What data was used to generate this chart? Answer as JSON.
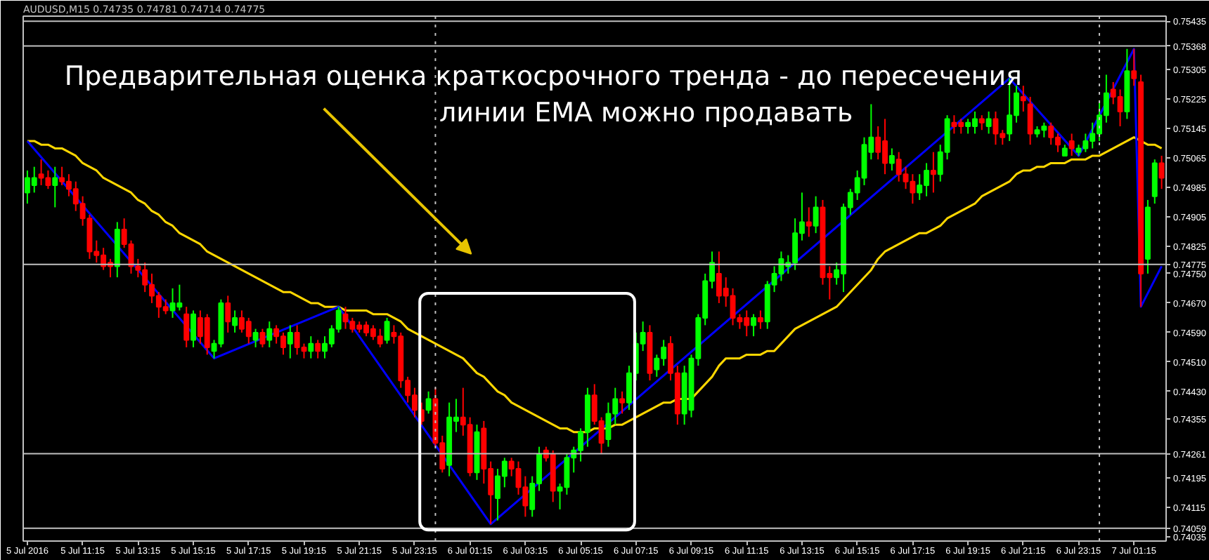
{
  "chart_data": {
    "type": "candlestick",
    "title": "Предварительная оценка краткосрочного тренда - до пересечения\nлинии EMA можно продавать",
    "subtitle": "AUDUSD,M15  0.74735 0.74781 0.74714 0.74775",
    "ylim": [
      0.74024,
      0.75449
    ],
    "yticks": [
      0.74035,
      0.74115,
      0.74195,
      0.74355,
      {
        "value": 0.7443,
        "label": "0.74430"
      },
      {
        "value": 0.7451,
        "label": "0.74510"
      },
      {
        "value": 0.7459,
        "label": "0.74590"
      },
      {
        "value": 0.7467,
        "label": "0.74670"
      },
      {
        "value": 0.7475,
        "label": "0.74750"
      },
      0.74825,
      0.74905,
      0.74985,
      0.75065,
      0.75145,
      0.75225,
      0.75305
    ],
    "categories": [
      "5 Jul 2016",
      null,
      null,
      null,
      null,
      null,
      null,
      null,
      "5 Jul 11:15",
      null,
      null,
      null,
      null,
      null,
      null,
      null,
      "5 Jul 13:15",
      null,
      null,
      null,
      null,
      null,
      null,
      null,
      "5 Jul 15:15",
      null,
      null,
      null,
      null,
      null,
      null,
      null,
      "5 Jul 17:15",
      null,
      null,
      null,
      null,
      null,
      null,
      null,
      "5 Jul 19:15",
      null,
      null,
      null,
      null,
      null,
      null,
      null,
      "5 Jul 21:15",
      null,
      null,
      null,
      null,
      null,
      null,
      null,
      "5 Jul 23:15",
      null,
      null,
      null,
      null,
      null,
      null,
      null,
      "6 Jul 01:15",
      null,
      null,
      null,
      null,
      null,
      null,
      null,
      "6 Jul 03:15",
      null,
      null,
      null,
      null,
      null,
      null,
      null,
      "6 Jul 05:15",
      null,
      null,
      null,
      null,
      null,
      null,
      null,
      "6 Jul 07:15",
      null,
      null,
      null,
      null,
      null,
      null,
      null,
      "6 Jul 09:15",
      null,
      null,
      null,
      null,
      null,
      null,
      null,
      "6 Jul 11:15",
      null,
      null,
      null,
      null,
      null,
      null,
      null,
      "6 Jul 13:15",
      null,
      null,
      null,
      null,
      null,
      null,
      null,
      "6 Jul 15:15",
      null,
      null,
      null,
      null,
      null,
      null,
      null,
      "6 Jul 17:15",
      null,
      null,
      null,
      null,
      null,
      null,
      null,
      "6 Jul 19:15",
      null,
      null,
      null,
      null,
      null,
      null,
      null,
      "6 Jul 21:15",
      null,
      null,
      null,
      null,
      null,
      null,
      null,
      "6 Jul 23:15",
      null,
      null,
      null,
      null,
      null,
      null,
      null,
      "7 Jul 01:15",
      null,
      null,
      null,
      null
    ],
    "ref_lines": [
      {
        "axis": "y",
        "value": 0.75435,
        "label": "0.75435",
        "color": "#c0c0c0"
      },
      {
        "axis": "y",
        "value": 0.75368,
        "label": "0.75368",
        "color": "#c0c0c0"
      },
      {
        "axis": "y",
        "value": 0.74775,
        "label": "0.74775",
        "color": "#c0c0c0"
      },
      {
        "axis": "y",
        "value": 0.74261,
        "label": "0.74261",
        "color": "#c0c0c0"
      },
      {
        "axis": "y",
        "value": 0.74059,
        "label": "0.74059",
        "color": "#c0c0c0"
      }
    ],
    "ohlc": [
      [
        0.7497,
        0.7503,
        0.7494,
        0.7501
      ],
      [
        0.7499,
        0.7504,
        0.7497,
        0.7501
      ],
      [
        0.7502,
        0.7506,
        0.7499,
        0.7501
      ],
      [
        0.7501,
        0.7503,
        0.7498,
        0.7499
      ],
      [
        0.7499,
        0.7504,
        0.7493,
        0.7501
      ],
      [
        0.7501,
        0.7504,
        0.7499,
        0.75
      ],
      [
        0.75,
        0.7502,
        0.7496,
        0.7498
      ],
      [
        0.7498,
        0.75,
        0.7492,
        0.7494
      ],
      [
        0.7494,
        0.7496,
        0.7488,
        0.749
      ],
      [
        0.749,
        0.7491,
        0.7479,
        0.7481
      ],
      [
        0.7481,
        0.7484,
        0.7478,
        0.748
      ],
      [
        0.748,
        0.7482,
        0.7476,
        0.7477
      ],
      [
        0.7478,
        0.7479,
        0.7474,
        0.7477
      ],
      [
        0.7477,
        0.7489,
        0.7474,
        0.7487
      ],
      [
        0.7487,
        0.749,
        0.7482,
        0.7483
      ],
      [
        0.7483,
        0.7484,
        0.7475,
        0.7477
      ],
      [
        0.7477,
        0.7479,
        0.7474,
        0.7476
      ],
      [
        0.7476,
        0.7478,
        0.747,
        0.7472
      ],
      [
        0.7472,
        0.7475,
        0.7467,
        0.7469
      ],
      [
        0.7469,
        0.747,
        0.7463,
        0.7466
      ],
      [
        0.7466,
        0.7468,
        0.7464,
        0.7465
      ],
      [
        0.7465,
        0.7471,
        0.7463,
        0.7467
      ],
      [
        0.7466,
        0.7472,
        0.7465,
        0.7467
      ],
      [
        0.7464,
        0.7466,
        0.7455,
        0.7457
      ],
      [
        0.7457,
        0.7465,
        0.7455,
        0.7464
      ],
      [
        0.7463,
        0.7465,
        0.7456,
        0.7458
      ],
      [
        0.7463,
        0.7464,
        0.7453,
        0.7455
      ],
      [
        0.7454,
        0.7457,
        0.7452,
        0.7456
      ],
      [
        0.7456,
        0.7468,
        0.7455,
        0.7467
      ],
      [
        0.7467,
        0.7469,
        0.7459,
        0.7462
      ],
      [
        0.7461,
        0.7465,
        0.7459,
        0.7463
      ],
      [
        0.7463,
        0.7465,
        0.7459,
        0.746
      ],
      [
        0.7462,
        0.7463,
        0.7456,
        0.7458
      ],
      [
        0.7457,
        0.746,
        0.7455,
        0.7459
      ],
      [
        0.7459,
        0.746,
        0.7455,
        0.7456
      ],
      [
        0.7457,
        0.7462,
        0.7455,
        0.746
      ],
      [
        0.746,
        0.7461,
        0.7456,
        0.7458
      ],
      [
        0.7458,
        0.7459,
        0.7453,
        0.7455
      ],
      [
        0.7456,
        0.7461,
        0.7452,
        0.7459
      ],
      [
        0.7459,
        0.7461,
        0.7453,
        0.7455
      ],
      [
        0.7455,
        0.7456,
        0.7452,
        0.7454
      ],
      [
        0.7454,
        0.7458,
        0.7452,
        0.7456
      ],
      [
        0.7456,
        0.7457,
        0.7452,
        0.7454
      ],
      [
        0.7454,
        0.7458,
        0.7452,
        0.7456
      ],
      [
        0.7456,
        0.7461,
        0.7455,
        0.746
      ],
      [
        0.746,
        0.7466,
        0.7459,
        0.7465
      ],
      [
        0.7464,
        0.7466,
        0.746,
        0.7462
      ],
      [
        0.7462,
        0.7463,
        0.7459,
        0.746
      ],
      [
        0.7461,
        0.7462,
        0.7459,
        0.746
      ],
      [
        0.7461,
        0.7462,
        0.7458,
        0.7459
      ],
      [
        0.746,
        0.7461,
        0.7457,
        0.7458
      ],
      [
        0.7458,
        0.746,
        0.7455,
        0.7456
      ],
      [
        0.7457,
        0.7463,
        0.7456,
        0.7462
      ],
      [
        0.7459,
        0.7461,
        0.7456,
        0.7458
      ],
      [
        0.7458,
        0.7459,
        0.7444,
        0.7446
      ],
      [
        0.7446,
        0.7447,
        0.744,
        0.7442
      ],
      [
        0.7442,
        0.7444,
        0.7436,
        0.7438
      ],
      [
        0.7438,
        0.744,
        0.7434,
        0.7435
      ],
      [
        0.7438,
        0.7443,
        0.7437,
        0.7441
      ],
      [
        0.7441,
        0.7444,
        0.7428,
        0.7429
      ],
      [
        0.7429,
        0.7431,
        0.7421,
        0.7422
      ],
      [
        0.7423,
        0.744,
        0.742,
        0.7436
      ],
      [
        0.7435,
        0.7441,
        0.7432,
        0.7436
      ],
      [
        0.7436,
        0.7444,
        0.7431,
        0.7434
      ],
      [
        0.7434,
        0.7436,
        0.742,
        0.7421
      ],
      [
        0.7421,
        0.7434,
        0.7419,
        0.7432
      ],
      [
        0.7433,
        0.7435,
        0.7418,
        0.7422
      ],
      [
        0.7422,
        0.7424,
        0.7407,
        0.7415
      ],
      [
        0.7414,
        0.7422,
        0.7408,
        0.742
      ],
      [
        0.742,
        0.7425,
        0.7417,
        0.7424
      ],
      [
        0.7424,
        0.7425,
        0.742,
        0.7422
      ],
      [
        0.7422,
        0.7424,
        0.7415,
        0.7417
      ],
      [
        0.7417,
        0.742,
        0.7409,
        0.7412
      ],
      [
        0.7411,
        0.742,
        0.7409,
        0.7418
      ],
      [
        0.7418,
        0.7428,
        0.7416,
        0.7426
      ],
      [
        0.7427,
        0.7428,
        0.7424,
        0.7425
      ],
      [
        0.7426,
        0.7427,
        0.7413,
        0.7416
      ],
      [
        0.7416,
        0.7418,
        0.7411,
        0.7417
      ],
      [
        0.7417,
        0.7426,
        0.7415,
        0.7425
      ],
      [
        0.7425,
        0.7428,
        0.7421,
        0.7427
      ],
      [
        0.7427,
        0.7433,
        0.7424,
        0.7432
      ],
      [
        0.7432,
        0.7444,
        0.7428,
        0.7442
      ],
      [
        0.7442,
        0.7445,
        0.7434,
        0.7435
      ],
      [
        0.7435,
        0.7436,
        0.7426,
        0.7429
      ],
      [
        0.743,
        0.744,
        0.7428,
        0.7437
      ],
      [
        0.7437,
        0.7444,
        0.7434,
        0.7441
      ],
      [
        0.7441,
        0.7443,
        0.7437,
        0.744
      ],
      [
        0.744,
        0.745,
        0.7438,
        0.7448
      ],
      [
        0.7448,
        0.7459,
        0.7446,
        0.7456
      ],
      [
        0.7456,
        0.7462,
        0.7454,
        0.7459
      ],
      [
        0.7459,
        0.7461,
        0.7446,
        0.7448
      ],
      [
        0.7449,
        0.7453,
        0.7447,
        0.7452
      ],
      [
        0.7452,
        0.7457,
        0.745,
        0.7455
      ],
      [
        0.7456,
        0.7458,
        0.7446,
        0.7448
      ],
      [
        0.7448,
        0.745,
        0.7434,
        0.7437
      ],
      [
        0.7437,
        0.745,
        0.7434,
        0.7448
      ],
      [
        0.7438,
        0.7453,
        0.7436,
        0.7452
      ],
      [
        0.7452,
        0.7464,
        0.745,
        0.7463
      ],
      [
        0.7463,
        0.7475,
        0.7461,
        0.7473
      ],
      [
        0.7473,
        0.7481,
        0.7471,
        0.7478
      ],
      [
        0.7475,
        0.7481,
        0.7467,
        0.7469
      ],
      [
        0.7471,
        0.7474,
        0.7466,
        0.7469
      ],
      [
        0.7469,
        0.7471,
        0.7461,
        0.7463
      ],
      [
        0.7463,
        0.7464,
        0.746,
        0.7462
      ],
      [
        0.7463,
        0.7465,
        0.7458,
        0.7461
      ],
      [
        0.7461,
        0.7464,
        0.7458,
        0.7463
      ],
      [
        0.7463,
        0.7465,
        0.746,
        0.7462
      ],
      [
        0.7462,
        0.7473,
        0.746,
        0.7472
      ],
      [
        0.7472,
        0.7477,
        0.747,
        0.7475
      ],
      [
        0.7475,
        0.7481,
        0.7473,
        0.7479
      ],
      [
        0.7477,
        0.748,
        0.7475,
        0.7478
      ],
      [
        0.7478,
        0.749,
        0.7476,
        0.7486
      ],
      [
        0.7486,
        0.7497,
        0.7484,
        0.7489
      ],
      [
        0.7489,
        0.7493,
        0.7485,
        0.7488
      ],
      [
        0.7488,
        0.7496,
        0.7486,
        0.7493
      ],
      [
        0.7493,
        0.7495,
        0.7472,
        0.7474
      ],
      [
        0.7475,
        0.7477,
        0.7468,
        0.7474
      ],
      [
        0.7474,
        0.7478,
        0.7472,
        0.7476
      ],
      [
        0.7475,
        0.7494,
        0.747,
        0.7493
      ],
      [
        0.7493,
        0.7498,
        0.7491,
        0.7497
      ],
      [
        0.7497,
        0.7503,
        0.7495,
        0.7501
      ],
      [
        0.7501,
        0.7512,
        0.7499,
        0.751
      ],
      [
        0.7508,
        0.7521,
        0.7506,
        0.7512
      ],
      [
        0.7512,
        0.7515,
        0.7506,
        0.7508
      ],
      [
        0.7511,
        0.7517,
        0.7502,
        0.7505
      ],
      [
        0.7505,
        0.7509,
        0.7503,
        0.7507
      ],
      [
        0.7506,
        0.7508,
        0.75,
        0.7502
      ],
      [
        0.7502,
        0.7504,
        0.7498,
        0.75
      ],
      [
        0.75,
        0.7502,
        0.7494,
        0.7497
      ],
      [
        0.7497,
        0.7502,
        0.7495,
        0.7499
      ],
      [
        0.7499,
        0.7505,
        0.7496,
        0.7503
      ],
      [
        0.7503,
        0.7508,
        0.7497,
        0.7502
      ],
      [
        0.7502,
        0.751,
        0.75,
        0.7508
      ],
      [
        0.7508,
        0.7518,
        0.7506,
        0.7517
      ],
      [
        0.7516,
        0.7518,
        0.7513,
        0.7515
      ],
      [
        0.7516,
        0.7517,
        0.7513,
        0.7515
      ],
      [
        0.7515,
        0.7517,
        0.7513,
        0.7516
      ],
      [
        0.7515,
        0.7519,
        0.7513,
        0.7517
      ],
      [
        0.7517,
        0.7518,
        0.7514,
        0.7516
      ],
      [
        0.7515,
        0.7519,
        0.7513,
        0.7517
      ],
      [
        0.7517,
        0.7519,
        0.751,
        0.7513
      ],
      [
        0.7513,
        0.7514,
        0.751,
        0.7512
      ],
      [
        0.7513,
        0.7528,
        0.7511,
        0.7518
      ],
      [
        0.7518,
        0.7526,
        0.7516,
        0.7524
      ],
      [
        0.7523,
        0.7526,
        0.7519,
        0.7522
      ],
      [
        0.7521,
        0.7523,
        0.751,
        0.7513
      ],
      [
        0.7513,
        0.7515,
        0.7512,
        0.7514
      ],
      [
        0.7514,
        0.7516,
        0.7512,
        0.7515
      ],
      [
        0.7515,
        0.7516,
        0.751,
        0.7512
      ],
      [
        0.7512,
        0.7513,
        0.7508,
        0.751
      ],
      [
        0.7507,
        0.751,
        0.7507,
        0.7509
      ],
      [
        0.7511,
        0.7513,
        0.7507,
        0.7509
      ],
      [
        0.7508,
        0.751,
        0.7507,
        0.7509
      ],
      [
        0.7509,
        0.7513,
        0.7508,
        0.7511
      ],
      [
        0.7511,
        0.7516,
        0.7509,
        0.7513
      ],
      [
        0.7513,
        0.7522,
        0.7511,
        0.7518
      ],
      [
        0.7518,
        0.7529,
        0.7516,
        0.7524
      ],
      [
        0.7525,
        0.7527,
        0.7521,
        0.7523
      ],
      [
        0.7523,
        0.7525,
        0.7515,
        0.7519
      ],
      [
        0.7519,
        0.7536,
        0.7517,
        0.753
      ],
      [
        0.753,
        0.7536,
        0.7526,
        0.7528
      ],
      [
        0.7527,
        0.7529,
        0.7466,
        0.7475
      ],
      [
        0.7479,
        0.7495,
        0.7475,
        0.7493
      ],
      [
        0.7496,
        0.7506,
        0.7494,
        0.7505
      ],
      [
        0.7505,
        0.7507,
        0.7498,
        0.7501
      ]
    ],
    "colors": [
      "#00ff00",
      "#00ff00",
      "#ff0000",
      "#ff0000",
      "#00ff00",
      "#ff0000",
      "#ff0000",
      "#ff0000",
      "#ff0000",
      "#ff0000",
      "#ff0000",
      "#ff0000",
      "#ff0000",
      "#00ff00",
      "#ff0000",
      "#ff0000",
      "#ff0000",
      "#ff0000",
      "#ff0000",
      "#ff0000",
      "#ff0000",
      "#00ff00",
      "#00ff00",
      "#ff0000",
      "#00ff00",
      "#ff0000",
      "#ff0000",
      "#00ff00",
      "#00ff00",
      "#ff0000",
      "#00ff00",
      "#ff0000",
      "#ff0000",
      "#00ff00",
      "#ff0000",
      "#00ff00",
      "#ff0000",
      "#ff0000",
      "#00ff00",
      "#ff0000",
      "#ff0000",
      "#00ff00",
      "#ff0000",
      "#00ff00",
      "#00ff00",
      "#00ff00",
      "#ff0000",
      "#ff0000",
      "#ff0000",
      "#ff0000",
      "#ff0000",
      "#ff0000",
      "#00ff00",
      "#ff0000",
      "#ff0000",
      "#ff0000",
      "#ff0000",
      "#ff0000",
      "#00ff00",
      "#ff0000",
      "#ff0000",
      "#00ff00",
      "#00ff00",
      "#ff0000",
      "#ff0000",
      "#00ff00",
      "#ff0000",
      "#ff0000",
      "#00ff00",
      "#00ff00",
      "#ff0000",
      "#ff0000",
      "#ff0000",
      "#00ff00",
      "#00ff00",
      "#ff0000",
      "#ff0000",
      "#00ff00",
      "#00ff00",
      "#00ff00",
      "#00ff00",
      "#00ff00",
      "#ff0000",
      "#ff0000",
      "#00ff00",
      "#00ff00",
      "#ff0000",
      "#00ff00",
      "#00ff00",
      "#00ff00",
      "#ff0000",
      "#00ff00",
      "#00ff00",
      "#ff0000",
      "#ff0000",
      "#00ff00",
      "#00ff00",
      "#00ff00",
      "#00ff00",
      "#00ff00",
      "#ff0000",
      "#ff0000",
      "#ff0000",
      "#ff0000",
      "#ff0000",
      "#00ff00",
      "#ff0000",
      "#00ff00",
      "#00ff00",
      "#00ff00",
      "#00ff00",
      "#00ff00",
      "#00ff00",
      "#ff0000",
      "#00ff00",
      "#ff0000",
      "#ff0000",
      "#00ff00",
      "#00ff00",
      "#00ff00",
      "#00ff00",
      "#00ff00",
      "#00ff00",
      "#ff0000",
      "#ff0000",
      "#00ff00",
      "#ff0000",
      "#ff0000",
      "#ff0000",
      "#00ff00",
      "#00ff00",
      "#ff0000",
      "#00ff00",
      "#00ff00",
      "#ff0000",
      "#ff0000",
      "#00ff00",
      "#00ff00",
      "#ff0000",
      "#00ff00",
      "#ff0000",
      "#ff0000",
      "#00ff00",
      "#00ff00",
      "#ff0000",
      "#ff0000",
      "#00ff00",
      "#00ff00",
      "#ff0000",
      "#ff0000",
      "#00ff00",
      "#ff0000",
      "#00ff00",
      "#00ff00",
      "#00ff00",
      "#00ff00",
      "#00ff00",
      "#ff0000",
      "#ff0000",
      "#00ff00",
      "#ff0000",
      "#ff0000",
      "#00ff00",
      "#00ff00",
      "#ff0000"
    ],
    "series": [
      {
        "type": "line",
        "color": "#ffd700",
        "values": [
          0.7511,
          0.7511,
          0.751,
          0.751,
          0.7509,
          0.7509,
          0.7508,
          0.7507,
          0.7505,
          0.7504,
          0.7503,
          0.7501,
          0.75,
          0.7499,
          0.7498,
          0.7497,
          0.7495,
          0.7494,
          0.7492,
          0.7491,
          0.7489,
          0.7488,
          0.7486,
          0.7485,
          0.7484,
          0.7483,
          0.7481,
          0.748,
          0.7479,
          0.7478,
          0.7477,
          0.7476,
          0.7475,
          0.7474,
          0.7473,
          0.7472,
          0.7471,
          0.747,
          0.747,
          0.7469,
          0.7468,
          0.7467,
          0.7467,
          0.7466,
          0.7466,
          0.7466,
          0.7465,
          0.7465,
          0.7465,
          0.7465,
          0.7464,
          0.7464,
          0.7464,
          0.7463,
          0.7462,
          0.746,
          0.7459,
          0.7458,
          0.7457,
          0.7456,
          0.7455,
          0.7454,
          0.7453,
          0.7452,
          0.745,
          0.7448,
          0.7447,
          0.7445,
          0.7443,
          0.7442,
          0.744,
          0.7439,
          0.7438,
          0.7437,
          0.7436,
          0.7435,
          0.7434,
          0.7433,
          0.7433,
          0.7432,
          0.7432,
          0.7432,
          0.7433,
          0.7433,
          0.7433,
          0.7434,
          0.7434,
          0.7435,
          0.7436,
          0.7437,
          0.7438,
          0.7439,
          0.744,
          0.744,
          0.7441,
          0.7441,
          0.7441,
          0.7443,
          0.7445,
          0.7447,
          0.745,
          0.7452,
          0.7452,
          0.7452,
          0.7453,
          0.7453,
          0.7453,
          0.7454,
          0.7454,
          0.7456,
          0.7458,
          0.746,
          0.7461,
          0.7462,
          0.7463,
          0.7464,
          0.7465,
          0.7466,
          0.7468,
          0.747,
          0.7472,
          0.7474,
          0.7476,
          0.7479,
          0.7481,
          0.7482,
          0.7483,
          0.7484,
          0.7485,
          0.7486,
          0.7486,
          0.7487,
          0.7488,
          0.749,
          0.7491,
          0.7492,
          0.7493,
          0.7494,
          0.7496,
          0.7497,
          0.7498,
          0.7499,
          0.75,
          0.7502,
          0.7503,
          0.7503,
          0.7504,
          0.7504,
          0.7505,
          0.7505,
          0.7505,
          0.7506,
          0.7506,
          0.7506,
          0.7507,
          0.7507,
          0.7508,
          0.7509,
          0.751,
          0.7511,
          0.7512,
          0.7511,
          0.751,
          0.751,
          0.7509
        ]
      },
      {
        "type": "line",
        "color": "#0000ff",
        "values": [
          0.7511,
          null,
          null,
          null,
          null,
          null,
          null,
          null,
          null,
          null,
          null,
          null,
          null,
          null,
          null,
          null,
          null,
          null,
          null,
          null,
          null,
          null,
          null,
          null,
          null,
          null,
          null,
          0.7452,
          null,
          null,
          null,
          null,
          null,
          null,
          null,
          null,
          null,
          null,
          null,
          null,
          null,
          null,
          null,
          null,
          null,
          0.7466,
          null,
          null,
          null,
          null,
          null,
          null,
          null,
          null,
          null,
          null,
          null,
          null,
          null,
          null,
          null,
          null,
          null,
          null,
          null,
          null,
          null,
          0.7407,
          null,
          null,
          null,
          null,
          null,
          null,
          null,
          null,
          null,
          null,
          null,
          null,
          null,
          null,
          null,
          null,
          null,
          null,
          null,
          null,
          null,
          null,
          null,
          null,
          null,
          null,
          null,
          null,
          null,
          null,
          null,
          null,
          null,
          null,
          null,
          null,
          null,
          null,
          null,
          null,
          null,
          null,
          null,
          null,
          null,
          null,
          null,
          null,
          null,
          null,
          null,
          null,
          null,
          null,
          null,
          null,
          null,
          null,
          null,
          null,
          null,
          null,
          null,
          null,
          null,
          null,
          null,
          null,
          null,
          null,
          null,
          null,
          null,
          null,
          0.7528,
          null,
          null,
          null,
          null,
          null,
          null,
          null,
          null,
          null,
          0.7507,
          null,
          null,
          null,
          null,
          null,
          null,
          null,
          0.7536,
          0.7466,
          null,
          null,
          0.7477
        ]
      }
    ]
  }
}
